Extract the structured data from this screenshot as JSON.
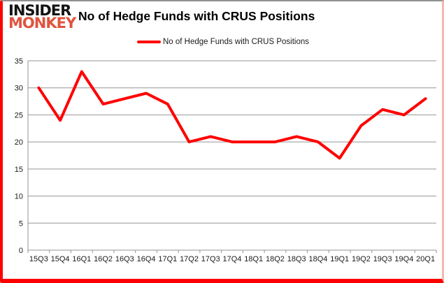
{
  "logo": {
    "line1": "INSIDER",
    "line2": "MONKEY",
    "line1_color": "#141414",
    "line2_color": "#e0543f"
  },
  "header": {
    "title": "No of Hedge Funds with CRUS Positions"
  },
  "legend": {
    "label": "No of Hedge Funds with CRUS Positions",
    "swatch_color": "#ff0000"
  },
  "colors": {
    "series_line": "#ff0000",
    "gridline": "#949494",
    "axis_text": "#1a1a1a",
    "frame_border": "#fe0000"
  },
  "chart_data": {
    "type": "line",
    "title": "No of Hedge Funds with CRUS Positions",
    "categories": [
      "15Q3",
      "15Q4",
      "16Q1",
      "16Q2",
      "16Q3",
      "16Q4",
      "17Q1",
      "17Q2",
      "17Q3",
      "17Q4",
      "18Q1",
      "18Q2",
      "18Q3",
      "18Q4",
      "19Q1",
      "19Q2",
      "19Q3",
      "19Q4",
      "20Q1"
    ],
    "series": [
      {
        "name": "No of Hedge Funds with CRUS Positions",
        "color": "#ff0000",
        "values": [
          30,
          24,
          33,
          27,
          28,
          29,
          27,
          20,
          21,
          20,
          20,
          20,
          21,
          20,
          17,
          23,
          26,
          25,
          28
        ]
      }
    ],
    "xlabel": "",
    "ylabel": "",
    "ylim": [
      0,
      35
    ],
    "yticks": [
      0,
      5,
      10,
      15,
      20,
      25,
      30,
      35
    ],
    "grid": true,
    "legend_position": "top"
  }
}
